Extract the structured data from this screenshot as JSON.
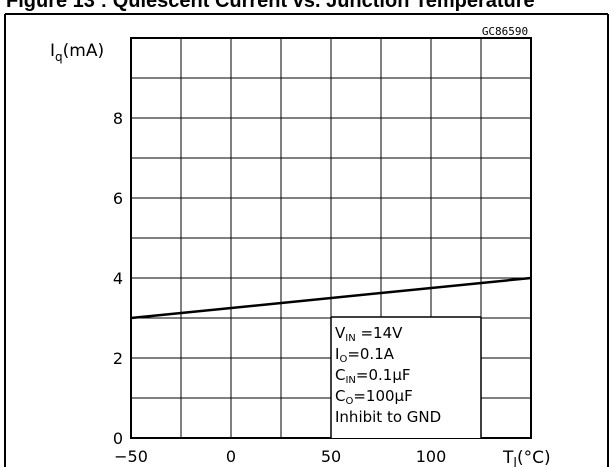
{
  "caption": "Figure 13 : Quiescent Current vs. Junction Temperature",
  "figure_code": "GC86590",
  "chart_data": {
    "type": "line",
    "title": "",
    "ylabel": "Iq(mA)",
    "ylabel_main": "I",
    "ylabel_sub": "q",
    "ylabel_unit": "(mA)",
    "xlabel": "TJ(°C)",
    "xlabel_main": "T",
    "xlabel_sub": "J",
    "xlabel_unit": "(°C)",
    "xlim": [
      -50,
      150
    ],
    "ylim": [
      0,
      10
    ],
    "x_ticks": [
      -50,
      0,
      50,
      100
    ],
    "x_tick_labels": [
      "−50",
      "0",
      "50",
      "100"
    ],
    "y_ticks": [
      0,
      2,
      4,
      6,
      8
    ],
    "y_tick_labels": [
      "0",
      "2",
      "4",
      "6",
      "8"
    ],
    "x_grid_step": 25,
    "y_grid_step": 1,
    "grid": true,
    "series": [
      {
        "name": "",
        "color": "#000000",
        "x": [
          -50,
          150
        ],
        "y": [
          3.0,
          4.0
        ]
      }
    ],
    "conditions": [
      {
        "main": "V",
        "sub": "IN",
        "rest": " =14V"
      },
      {
        "main": "I",
        "sub": "O",
        "rest": "=0.1A"
      },
      {
        "main": "C",
        "sub": "IN",
        "rest": "=0.1μF"
      },
      {
        "main": "C",
        "sub": "O",
        "rest": "=100μF"
      },
      {
        "main": "Inhibit to GND",
        "sub": "",
        "rest": ""
      }
    ]
  }
}
